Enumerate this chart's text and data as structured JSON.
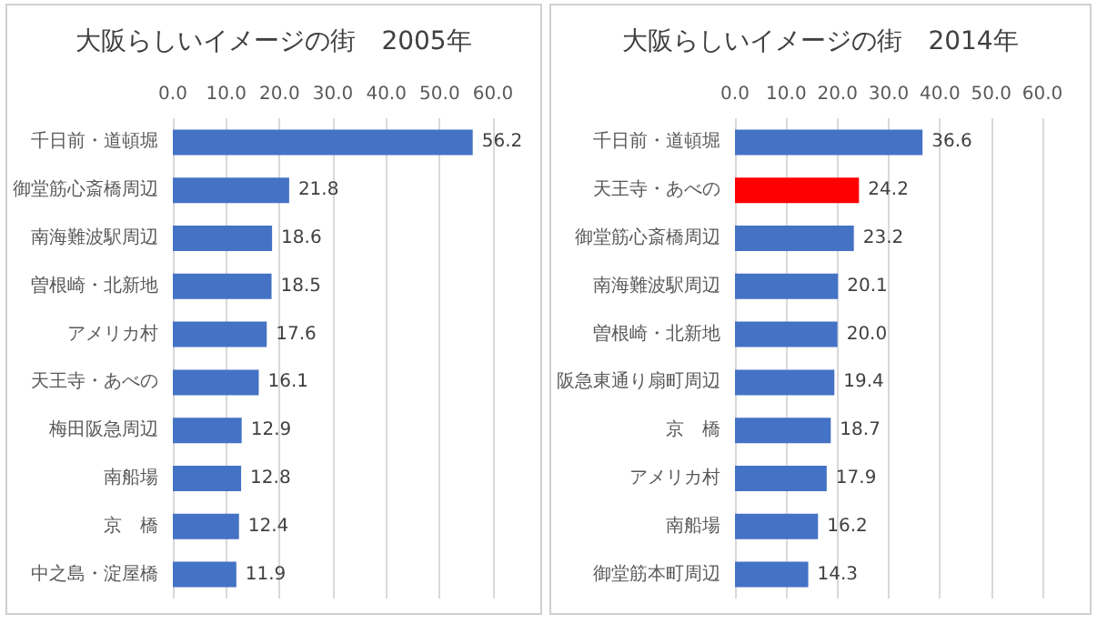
{
  "chart_data": [
    {
      "type": "bar",
      "orientation": "horizontal",
      "title": "大阪らしいイメージの街　2005年",
      "categories": [
        "千日前・道頓堀",
        "御堂筋心斎橋周辺",
        "南海難波駅周辺",
        "曽根崎・北新地",
        "アメリカ村",
        "天王寺・あべの",
        "梅田阪急周辺",
        "南船場",
        "京　橋",
        "中之島・淀屋橋"
      ],
      "values": [
        56.2,
        21.8,
        18.6,
        18.5,
        17.6,
        16.1,
        12.9,
        12.8,
        12.4,
        11.9
      ],
      "value_labels": [
        "56.2",
        "21.8",
        "18.6",
        "18.5",
        "17.6",
        "16.1",
        "12.9",
        "12.8",
        "12.4",
        "11.9"
      ],
      "color": "#4472c4",
      "xlim": [
        0,
        60
      ],
      "xticks": [
        {
          "value": 0,
          "label": "0.0"
        },
        {
          "value": 10,
          "label": "10.0"
        },
        {
          "value": 20,
          "label": "20.0"
        },
        {
          "value": 30,
          "label": "30.0"
        },
        {
          "value": 40,
          "label": "40.0"
        },
        {
          "value": 50,
          "label": "50.0"
        },
        {
          "value": 60,
          "label": "60.0"
        }
      ],
      "grid": "x"
    },
    {
      "type": "bar",
      "orientation": "horizontal",
      "title": "大阪らしいイメージの街　2014年",
      "categories": [
        "千日前・道頓堀",
        "天王寺・あべの",
        "御堂筋心斎橋周辺",
        "南海難波駅周辺",
        "曽根崎・北新地",
        "阪急東通り扇町周辺",
        "京　橋",
        "アメリカ村",
        "南船場",
        "御堂筋本町周辺"
      ],
      "values": [
        36.6,
        24.2,
        23.2,
        20.1,
        20.0,
        19.4,
        18.7,
        17.9,
        16.2,
        14.3
      ],
      "value_labels": [
        "36.6",
        "24.2",
        "23.2",
        "20.1",
        "20.0",
        "19.4",
        "18.7",
        "17.9",
        "16.2",
        "14.3"
      ],
      "colors": [
        "#4472c4",
        "#ff0000",
        "#4472c4",
        "#4472c4",
        "#4472c4",
        "#4472c4",
        "#4472c4",
        "#4472c4",
        "#4472c4",
        "#4472c4"
      ],
      "xlim": [
        0,
        60
      ],
      "xticks": [
        {
          "value": 0,
          "label": "0.0"
        },
        {
          "value": 10,
          "label": "10.0"
        },
        {
          "value": 20,
          "label": "20.0"
        },
        {
          "value": 30,
          "label": "30.0"
        },
        {
          "value": 40,
          "label": "40.0"
        },
        {
          "value": 50,
          "label": "50.0"
        },
        {
          "value": 60,
          "label": "60.0"
        }
      ],
      "grid": "x"
    }
  ]
}
